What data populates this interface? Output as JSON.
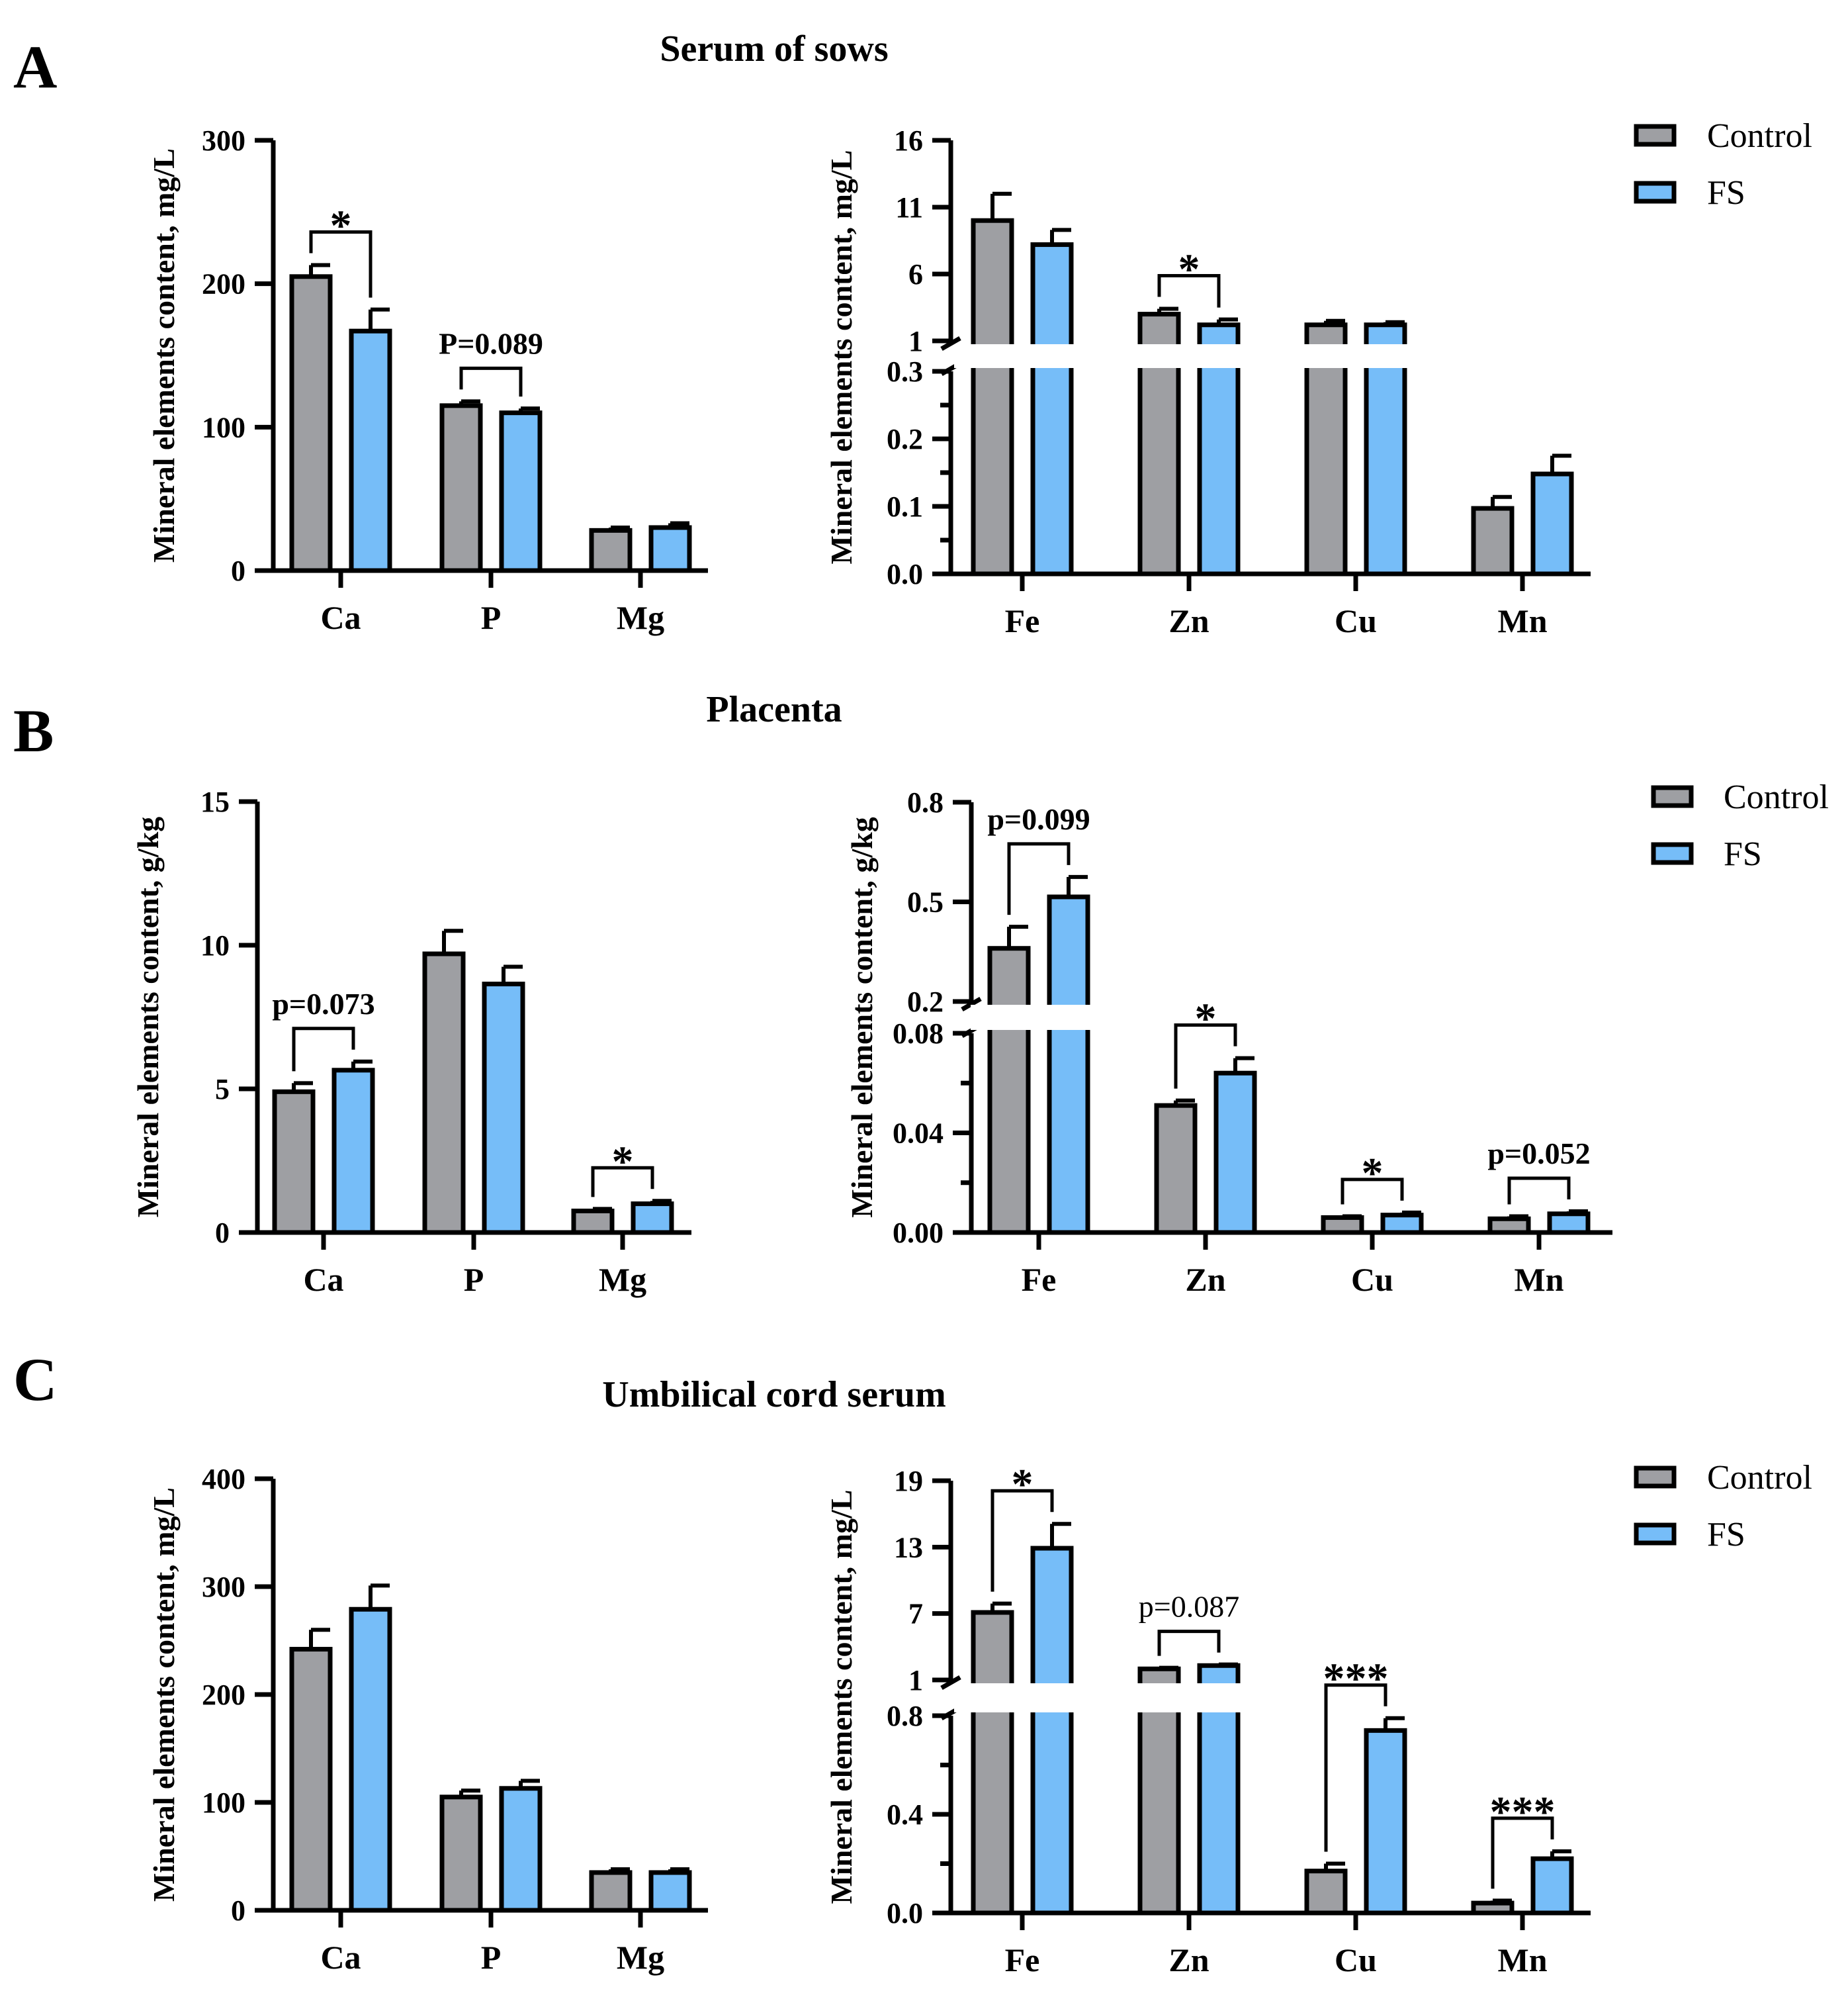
{
  "colors": {
    "Control": "#9e9fa3",
    "FS": "#76bdf8",
    "stroke": "#000000"
  },
  "legend": [
    "Control",
    "FS"
  ],
  "rows": [
    {
      "letter": "A",
      "title": "Serum of sows"
    },
    {
      "letter": "B",
      "title": "Placenta"
    },
    {
      "letter": "C",
      "title": "Umbilical cord serum"
    }
  ],
  "chart_data": [
    {
      "type": "bar",
      "panel": "A-left",
      "ylabel": "Mineral elements content, mg/L",
      "categories": [
        "Ca",
        "P",
        "Mg"
      ],
      "ylim": [
        0,
        300
      ],
      "yticks": [
        "0",
        "100",
        "200",
        "300"
      ],
      "yticks_values": [
        0,
        100,
        200,
        300
      ],
      "series": [
        {
          "name": "Control",
          "values": [
            205,
            115,
            28
          ],
          "errors": [
            8,
            3,
            2
          ]
        },
        {
          "name": "FS",
          "values": [
            167,
            110,
            30
          ],
          "errors": [
            15,
            3,
            3
          ]
        }
      ],
      "annotations": [
        {
          "category": "Ca",
          "label": "*"
        },
        {
          "category": "P",
          "label": "P=0.089"
        }
      ]
    },
    {
      "type": "bar",
      "panel": "A-right",
      "ylabel": "Mineral elements content, mg/L",
      "categories": [
        "Fe",
        "Zn",
        "Cu",
        "Mn"
      ],
      "broken_axis": {
        "lower": [
          0,
          0.3
        ],
        "upper": [
          1,
          16
        ]
      },
      "yticks_lower": [
        "0.0",
        "0.1",
        "0.2",
        "0.3"
      ],
      "yticks_lower_values": [
        0,
        0.1,
        0.2,
        0.3
      ],
      "yticks_upper": [
        "1",
        "6",
        "11",
        "16"
      ],
      "yticks_upper_values": [
        1,
        6,
        11,
        16
      ],
      "series": [
        {
          "name": "Control",
          "values": [
            10,
            3,
            2.2,
            0.097
          ],
          "errors": [
            2,
            0.4,
            0.3,
            0.017
          ]
        },
        {
          "name": "FS",
          "values": [
            8.2,
            2.2,
            2.2,
            0.148
          ],
          "errors": [
            1.1,
            0.4,
            0.2,
            0.027
          ]
        }
      ],
      "annotations": [
        {
          "category": "Zn",
          "label": "*"
        }
      ]
    },
    {
      "type": "bar",
      "panel": "B-left",
      "ylabel": "Mineral elements content, g/kg",
      "categories": [
        "Ca",
        "P",
        "Mg"
      ],
      "ylim": [
        0,
        15
      ],
      "yticks": [
        "0",
        "5",
        "10",
        "15"
      ],
      "yticks_values": [
        0,
        5,
        10,
        15
      ],
      "series": [
        {
          "name": "Control",
          "values": [
            4.9,
            9.7,
            0.75
          ],
          "errors": [
            0.3,
            0.8,
            0.07
          ]
        },
        {
          "name": "FS",
          "values": [
            5.65,
            8.65,
            1.0
          ],
          "errors": [
            0.3,
            0.6,
            0.1
          ]
        }
      ],
      "annotations": [
        {
          "category": "Ca",
          "label": "p=0.073"
        },
        {
          "category": "Mg",
          "label": "*"
        }
      ]
    },
    {
      "type": "bar",
      "panel": "B-right",
      "ylabel": "Mineral elements content, g/kg",
      "categories": [
        "Fe",
        "Zn",
        "Cu",
        "Mn"
      ],
      "broken_axis": {
        "lower": [
          0,
          0.08
        ],
        "upper": [
          0.2,
          0.8
        ]
      },
      "yticks_lower": [
        "0.00",
        "0.04",
        "0.08"
      ],
      "yticks_lower_values": [
        0,
        0.04,
        0.08
      ],
      "yticks_upper": [
        "0.2",
        "0.5",
        "0.8"
      ],
      "yticks_upper_values": [
        0.2,
        0.5,
        0.8
      ],
      "series": [
        {
          "name": "Control",
          "values": [
            0.36,
            0.051,
            0.006,
            0.0055
          ],
          "errors": [
            0.065,
            0.002,
            0.0005,
            0.001
          ]
        },
        {
          "name": "FS",
          "values": [
            0.515,
            0.064,
            0.007,
            0.0075
          ],
          "errors": [
            0.06,
            0.006,
            0.001,
            0.001
          ]
        }
      ],
      "annotations": [
        {
          "category": "Fe",
          "label": "p=0.099"
        },
        {
          "category": "Zn",
          "label": "*"
        },
        {
          "category": "Cu",
          "label": "*"
        },
        {
          "category": "Mn",
          "label": "p=0.052"
        }
      ]
    },
    {
      "type": "bar",
      "panel": "C-left",
      "ylabel": "Mineral elements content, mg/L",
      "categories": [
        "Ca",
        "P",
        "Mg"
      ],
      "ylim": [
        0,
        400
      ],
      "yticks": [
        "0",
        "100",
        "200",
        "300",
        "400"
      ],
      "yticks_values": [
        0,
        100,
        200,
        300,
        400
      ],
      "series": [
        {
          "name": "Control",
          "values": [
            242,
            105,
            35
          ],
          "errors": [
            18,
            6,
            3
          ]
        },
        {
          "name": "FS",
          "values": [
            279,
            113,
            35
          ],
          "errors": [
            22,
            7,
            3
          ]
        }
      ],
      "annotations": []
    },
    {
      "type": "bar",
      "panel": "C-right",
      "ylabel": "Mineral elements content, mg/L",
      "categories": [
        "Fe",
        "Zn",
        "Cu",
        "Mn"
      ],
      "broken_axis": {
        "lower": [
          0,
          0.8
        ],
        "upper": [
          1,
          19
        ]
      },
      "yticks_lower": [
        "0.0",
        "0.4",
        "0.8"
      ],
      "yticks_lower_values": [
        0,
        0.4,
        0.8
      ],
      "yticks_upper": [
        "1",
        "7",
        "13",
        "19"
      ],
      "yticks_upper_values": [
        1,
        7,
        13,
        19
      ],
      "series": [
        {
          "name": "Control",
          "values": [
            7.1,
            2.0,
            0.17,
            0.04
          ],
          "errors": [
            0.8,
            0.1,
            0.03,
            0.01
          ]
        },
        {
          "name": "FS",
          "values": [
            12.9,
            2.3,
            0.74,
            0.22
          ],
          "errors": [
            2.2,
            0.1,
            0.05,
            0.03
          ]
        }
      ],
      "annotations": [
        {
          "category": "Fe",
          "label": "*"
        },
        {
          "category": "Zn",
          "label": "p=0.087"
        },
        {
          "category": "Cu",
          "label": "***"
        },
        {
          "category": "Mn",
          "label": "***"
        }
      ]
    }
  ]
}
